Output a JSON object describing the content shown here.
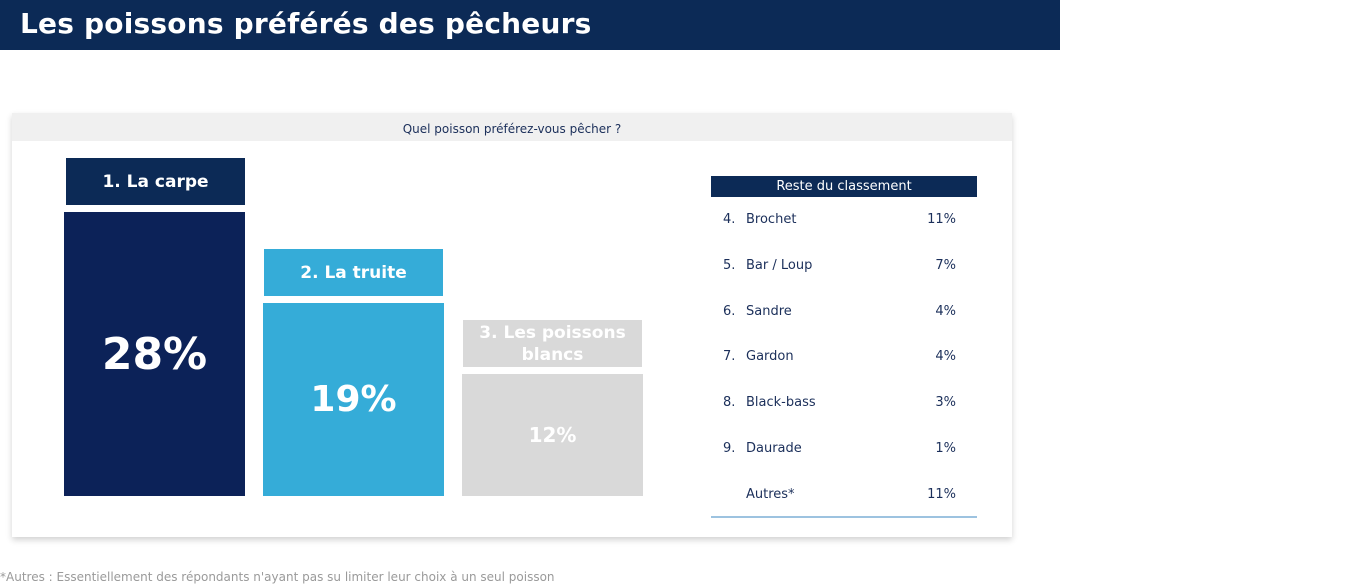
{
  "header": {
    "title": "Les poissons préférés des pêcheurs"
  },
  "question": "Quel poisson préférez-vous pêcher ?",
  "colors": {
    "carpe": "#0c2258",
    "truite": "#35acd8",
    "blancs": "#d9d9d9",
    "header": "#0c2a56"
  },
  "chart_data": {
    "type": "bar",
    "categories": [
      "1. La carpe",
      "2. La truite",
      "3. Les poissons blancs"
    ],
    "values": [
      28,
      19,
      12
    ],
    "value_labels": [
      "28%",
      "19%",
      "12%"
    ],
    "unit": "%",
    "title": "Quel poisson préférez-vous pêcher ?",
    "xlabel": "",
    "ylabel": "",
    "ylim": [
      0,
      28
    ],
    "grid": false
  },
  "ranking": {
    "title": "Reste du classement",
    "rows": [
      {
        "rank": "4.",
        "name": "Brochet",
        "value": "11%"
      },
      {
        "rank": "5.",
        "name": "Bar / Loup",
        "value": "7%"
      },
      {
        "rank": "6.",
        "name": "Sandre",
        "value": "4%"
      },
      {
        "rank": "7.",
        "name": "Gardon",
        "value": "4%"
      },
      {
        "rank": "8.",
        "name": "Black-bass",
        "value": "3%"
      },
      {
        "rank": "9.",
        "name": "Daurade",
        "value": "1%"
      },
      {
        "rank": "",
        "name": "Autres*",
        "value": "11%"
      }
    ]
  },
  "footnote": "*Autres : Essentiellement des répondants n'ayant pas su limiter leur choix à un seul poisson"
}
